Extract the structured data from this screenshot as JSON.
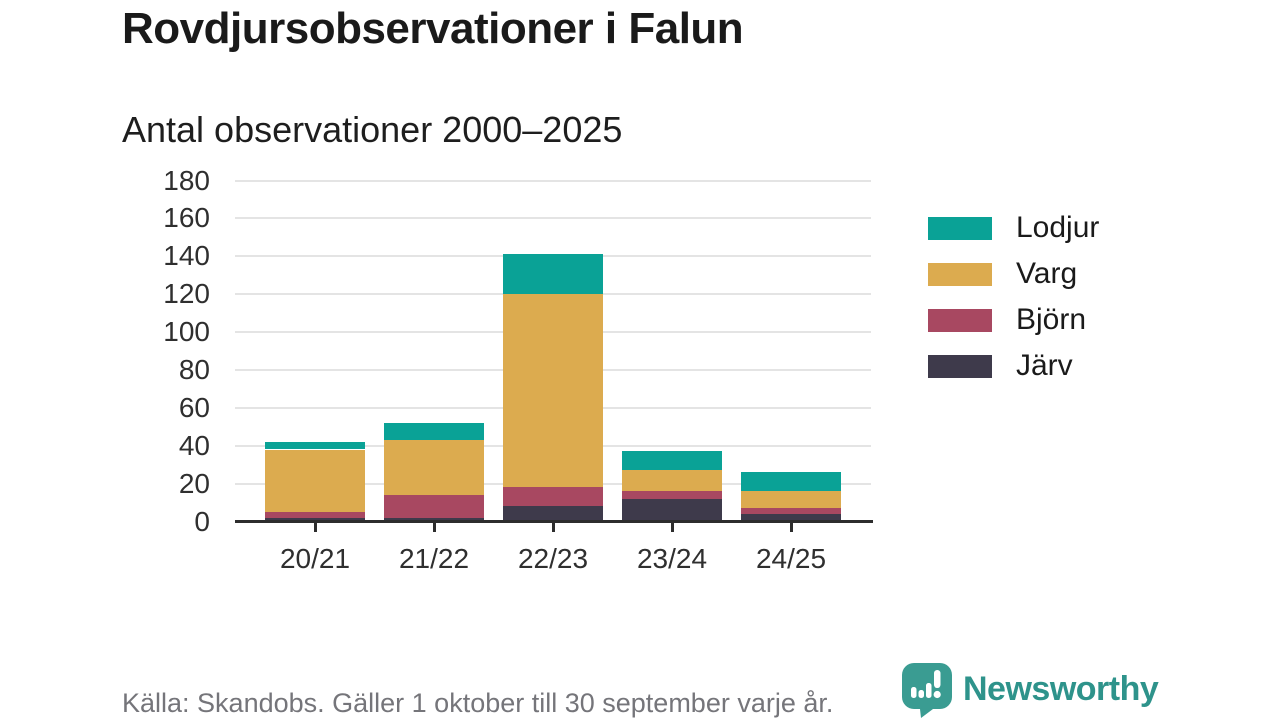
{
  "title": "Rovdjursobservationer i Falun",
  "subtitle": "Antal observationer 2000–2025",
  "footer": {
    "source": "Källa: Skandobs. Gäller 1 oktober till 30 september varje år.",
    "brand": "Newsworthy"
  },
  "colors": {
    "lodjur_teal": "#0aa296",
    "varg_gold": "#dcab4f",
    "bjorn_maroon": "#a84861",
    "jarv_dark": "#3e3a4b",
    "grid": "#e4e4e4",
    "axis": "#2d2d2d",
    "brand_teal": "#3a9c92",
    "footer_gray": "#75757a"
  },
  "chart_data": {
    "type": "bar",
    "stacked": true,
    "title": "Rovdjursobservationer i Falun",
    "subtitle": "Antal observationer 2000–2025",
    "categories": [
      "20/21",
      "21/22",
      "22/23",
      "23/24",
      "24/25"
    ],
    "series": [
      {
        "name": "Järv",
        "color": "#3e3a4b",
        "values": [
          2,
          2,
          8,
          12,
          4
        ]
      },
      {
        "name": "Björn",
        "color": "#a84861",
        "values": [
          3,
          12,
          10,
          4,
          3
        ]
      },
      {
        "name": "Varg",
        "color": "#dcab4f",
        "values": [
          33,
          29,
          102,
          11,
          9
        ]
      },
      {
        "name": "Lodjur",
        "color": "#0aa296",
        "values": [
          4,
          9,
          21,
          10,
          10
        ]
      }
    ],
    "totals": [
      42,
      52,
      141,
      37,
      26
    ],
    "ylim": [
      0,
      180
    ],
    "yticks": [
      0,
      20,
      40,
      60,
      80,
      100,
      120,
      140,
      160,
      180
    ],
    "xlabel": "",
    "ylabel": "",
    "grid": true,
    "legend_position": "right",
    "legend_order": [
      "Lodjur",
      "Varg",
      "Björn",
      "Järv"
    ]
  }
}
